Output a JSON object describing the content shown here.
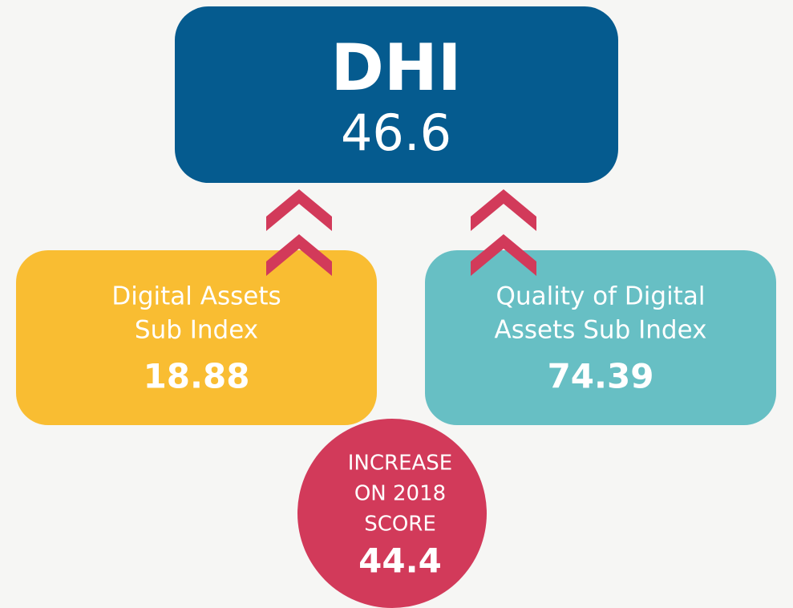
{
  "top": {
    "title": "DHI",
    "value": "46.6"
  },
  "left": {
    "lines": [
      "Digital Assets",
      "Sub Index"
    ],
    "value": "18.88"
  },
  "right": {
    "lines": [
      "Quality of Digital",
      "Assets Sub Index"
    ],
    "value": "74.39"
  },
  "circle": {
    "lines": [
      "INCREASE",
      "ON 2018",
      "SCORE"
    ],
    "value": "44.4"
  }
}
